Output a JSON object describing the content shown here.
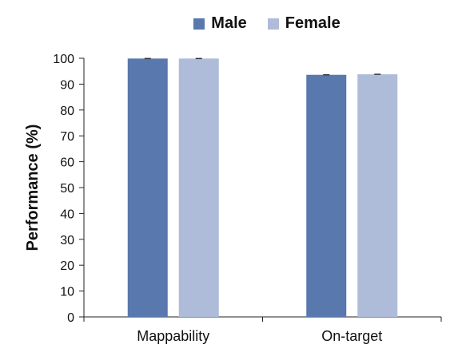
{
  "chart_data": {
    "type": "bar",
    "categories": [
      "Mappability",
      "On-target"
    ],
    "series": [
      {
        "name": "Male",
        "color": "#5878ae",
        "values": [
          99.9,
          93.6
        ]
      },
      {
        "name": "Female",
        "color": "#aebcda",
        "values": [
          99.9,
          93.8
        ]
      }
    ],
    "ylabel": "Performance (%)",
    "xlabel": "",
    "ylim": [
      0,
      100
    ],
    "yticks": [
      0,
      10,
      20,
      30,
      40,
      50,
      60,
      70,
      80,
      90,
      100
    ],
    "grid": false,
    "legend_position": "top-center",
    "error_bars": true
  }
}
